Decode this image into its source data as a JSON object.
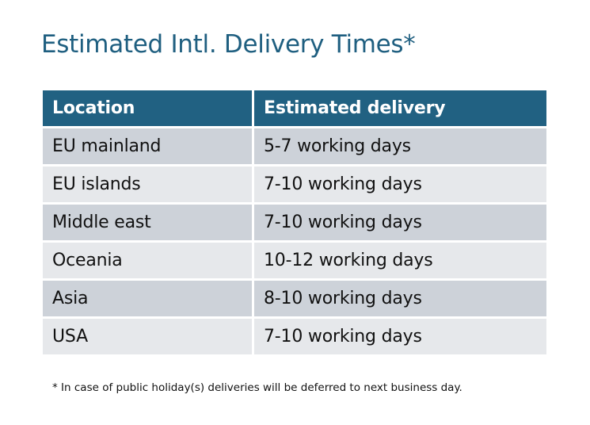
{
  "title": "Estimated Intl. Delivery Times*",
  "table": {
    "headers": [
      "Location",
      "Estimated delivery"
    ],
    "rows": [
      [
        "EU mainland",
        "5-7 working days"
      ],
      [
        "EU islands",
        "7-10 working days"
      ],
      [
        "Middle east",
        "7-10 working days"
      ],
      [
        "Oceania",
        "10-12 working days"
      ],
      [
        "Asia",
        "8-10 working days"
      ],
      [
        "USA",
        "7-10 working days"
      ]
    ]
  },
  "footnote": "* In case of public holiday(s) deliveries will be deferred to next business day.",
  "colors": {
    "title": "#1f5f80",
    "header_bg": "#216182",
    "row_odd": "#cdd2d9",
    "row_even": "#e6e8eb"
  }
}
